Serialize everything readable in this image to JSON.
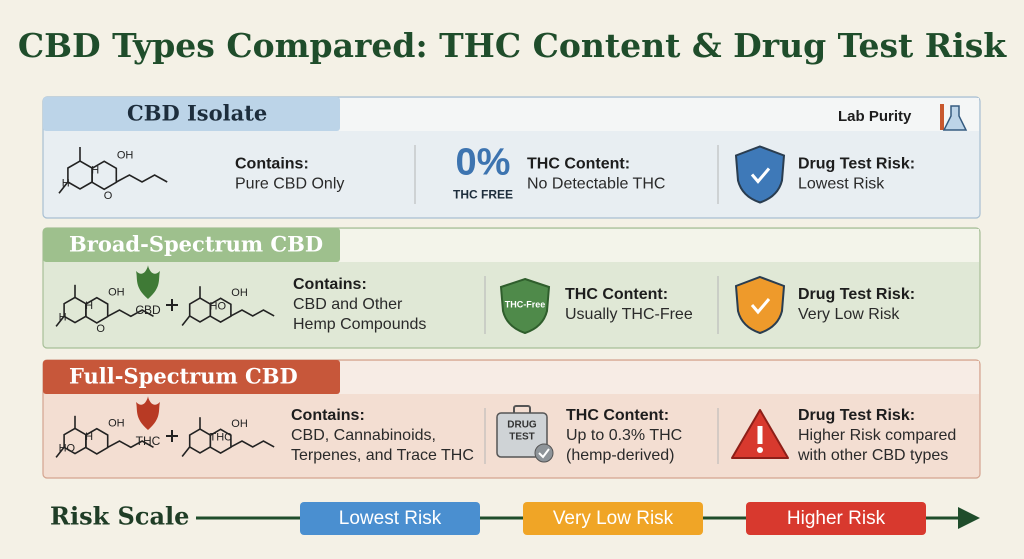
{
  "title": "CBD Types Compared: THC Content & Drug Test Risk",
  "badge": "Lab Purity",
  "sections": [
    {
      "name": "CBD Isolate",
      "molecule_labels": [
        "OH",
        "H",
        "H",
        "O"
      ],
      "contains_label": "Contains:",
      "contains_lines": [
        "Pure CBD Only"
      ],
      "thc_icon": [
        "0%",
        "THC FREE"
      ],
      "thc_label": "THC Content:",
      "thc_lines": [
        "No Detectable THC"
      ],
      "risk_label": "Drug Test Risk:",
      "risk_lines": [
        "Lowest Risk"
      ]
    },
    {
      "name": "Broad-Spectrum CBD",
      "molecule_labels": [
        "OH",
        "H",
        "H",
        "O"
      ],
      "leaf_label": "CBD",
      "molecule2_labels": [
        "OH",
        "HO"
      ],
      "contains_label": "Contains:",
      "contains_lines": [
        "CBD and Other",
        "Hemp Compounds"
      ],
      "thc_icon": [
        "THC-Free"
      ],
      "thc_label": "THC Content:",
      "thc_lines": [
        "Usually THC-Free"
      ],
      "risk_label": "Drug Test Risk:",
      "risk_lines": [
        "Very Low Risk"
      ]
    },
    {
      "name": "Full-Spectrum CBD",
      "molecule_labels": [
        "OH",
        "H",
        "HO"
      ],
      "leaf_label": "THC",
      "molecule2_labels": [
        "OH",
        "THC"
      ],
      "contains_label": "Contains:",
      "contains_lines": [
        "CBD, Cannabinoids,",
        "Terpenes, and Trace THC"
      ],
      "thc_icon": [
        "DRUG",
        "TEST"
      ],
      "thc_label": "THC Content:",
      "thc_lines": [
        "Up to 0.3% THC",
        "(hemp-derived)"
      ],
      "risk_label": "Drug Test Risk:",
      "risk_lines": [
        "Higher Risk compared",
        "with other CBD types"
      ]
    }
  ],
  "risk_scale": {
    "label": "Risk Scale",
    "levels": [
      "Lowest Risk",
      "Very Low Risk",
      "Higher Risk"
    ]
  }
}
